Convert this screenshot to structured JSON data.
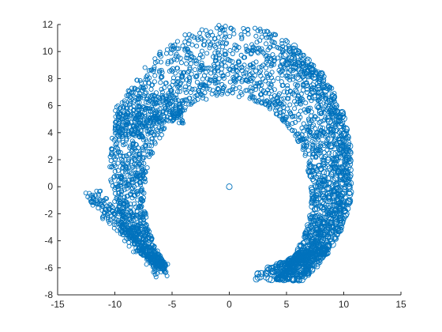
{
  "chart_data": {
    "type": "scatter",
    "title": "",
    "xlabel": "",
    "ylabel": "",
    "xlim": [
      -15,
      15
    ],
    "ylim": [
      -8,
      12
    ],
    "x_ticks": [
      -15,
      -10,
      -5,
      0,
      5,
      10,
      15
    ],
    "y_ticks": [
      -8,
      -6,
      -4,
      -2,
      0,
      2,
      4,
      6,
      8,
      10,
      12
    ],
    "grid": false,
    "legend": "none",
    "marker": "circle",
    "marker_color": "#0072BD",
    "description_points": {
      "center_point": [
        0,
        0
      ],
      "inner_edge_start": [
        -5.8,
        -6.3
      ],
      "outer_edge_start": [
        -12.0,
        -0.5
      ],
      "top_extent": [
        0,
        12
      ],
      "tail_end_inner": [
        2.4,
        -6.7
      ],
      "tail_end_outer": [
        10.3,
        1.2
      ]
    },
    "series": [
      {
        "values_sample": [
          [
            -12.0,
            -0.5
          ],
          [
            -11.8,
            2.0
          ],
          [
            -11.2,
            4.5
          ],
          [
            -10.0,
            7.2
          ],
          [
            -8.0,
            9.5
          ],
          [
            -5.0,
            11.2
          ],
          [
            -2.0,
            11.9
          ],
          [
            0.0,
            12.0
          ],
          [
            2.0,
            11.9
          ],
          [
            4.5,
            11.0
          ],
          [
            6.8,
            9.5
          ],
          [
            8.6,
            7.5
          ],
          [
            9.8,
            5.0
          ],
          [
            10.3,
            2.0
          ],
          [
            10.3,
            -1.0
          ],
          [
            9.6,
            -3.5
          ],
          [
            8.2,
            -5.2
          ],
          [
            6.2,
            -5.9
          ],
          [
            4.2,
            -6.2
          ],
          [
            2.4,
            -6.7
          ],
          [
            -5.8,
            -6.3
          ],
          [
            -8.3,
            -4.0
          ],
          [
            -9.6,
            -1.0
          ],
          [
            -9.9,
            2.0
          ],
          [
            -9.4,
            4.0
          ],
          [
            -7.0,
            5.5
          ],
          [
            -4.5,
            5.6
          ],
          [
            -3.0,
            6.2
          ],
          [
            0.0,
            6.8
          ],
          [
            3.0,
            6.5
          ],
          [
            5.6,
            5.0
          ],
          [
            6.8,
            2.5
          ],
          [
            7.0,
            0.0
          ],
          [
            6.6,
            -2.5
          ],
          [
            5.4,
            -4.5
          ]
        ]
      }
    ]
  }
}
